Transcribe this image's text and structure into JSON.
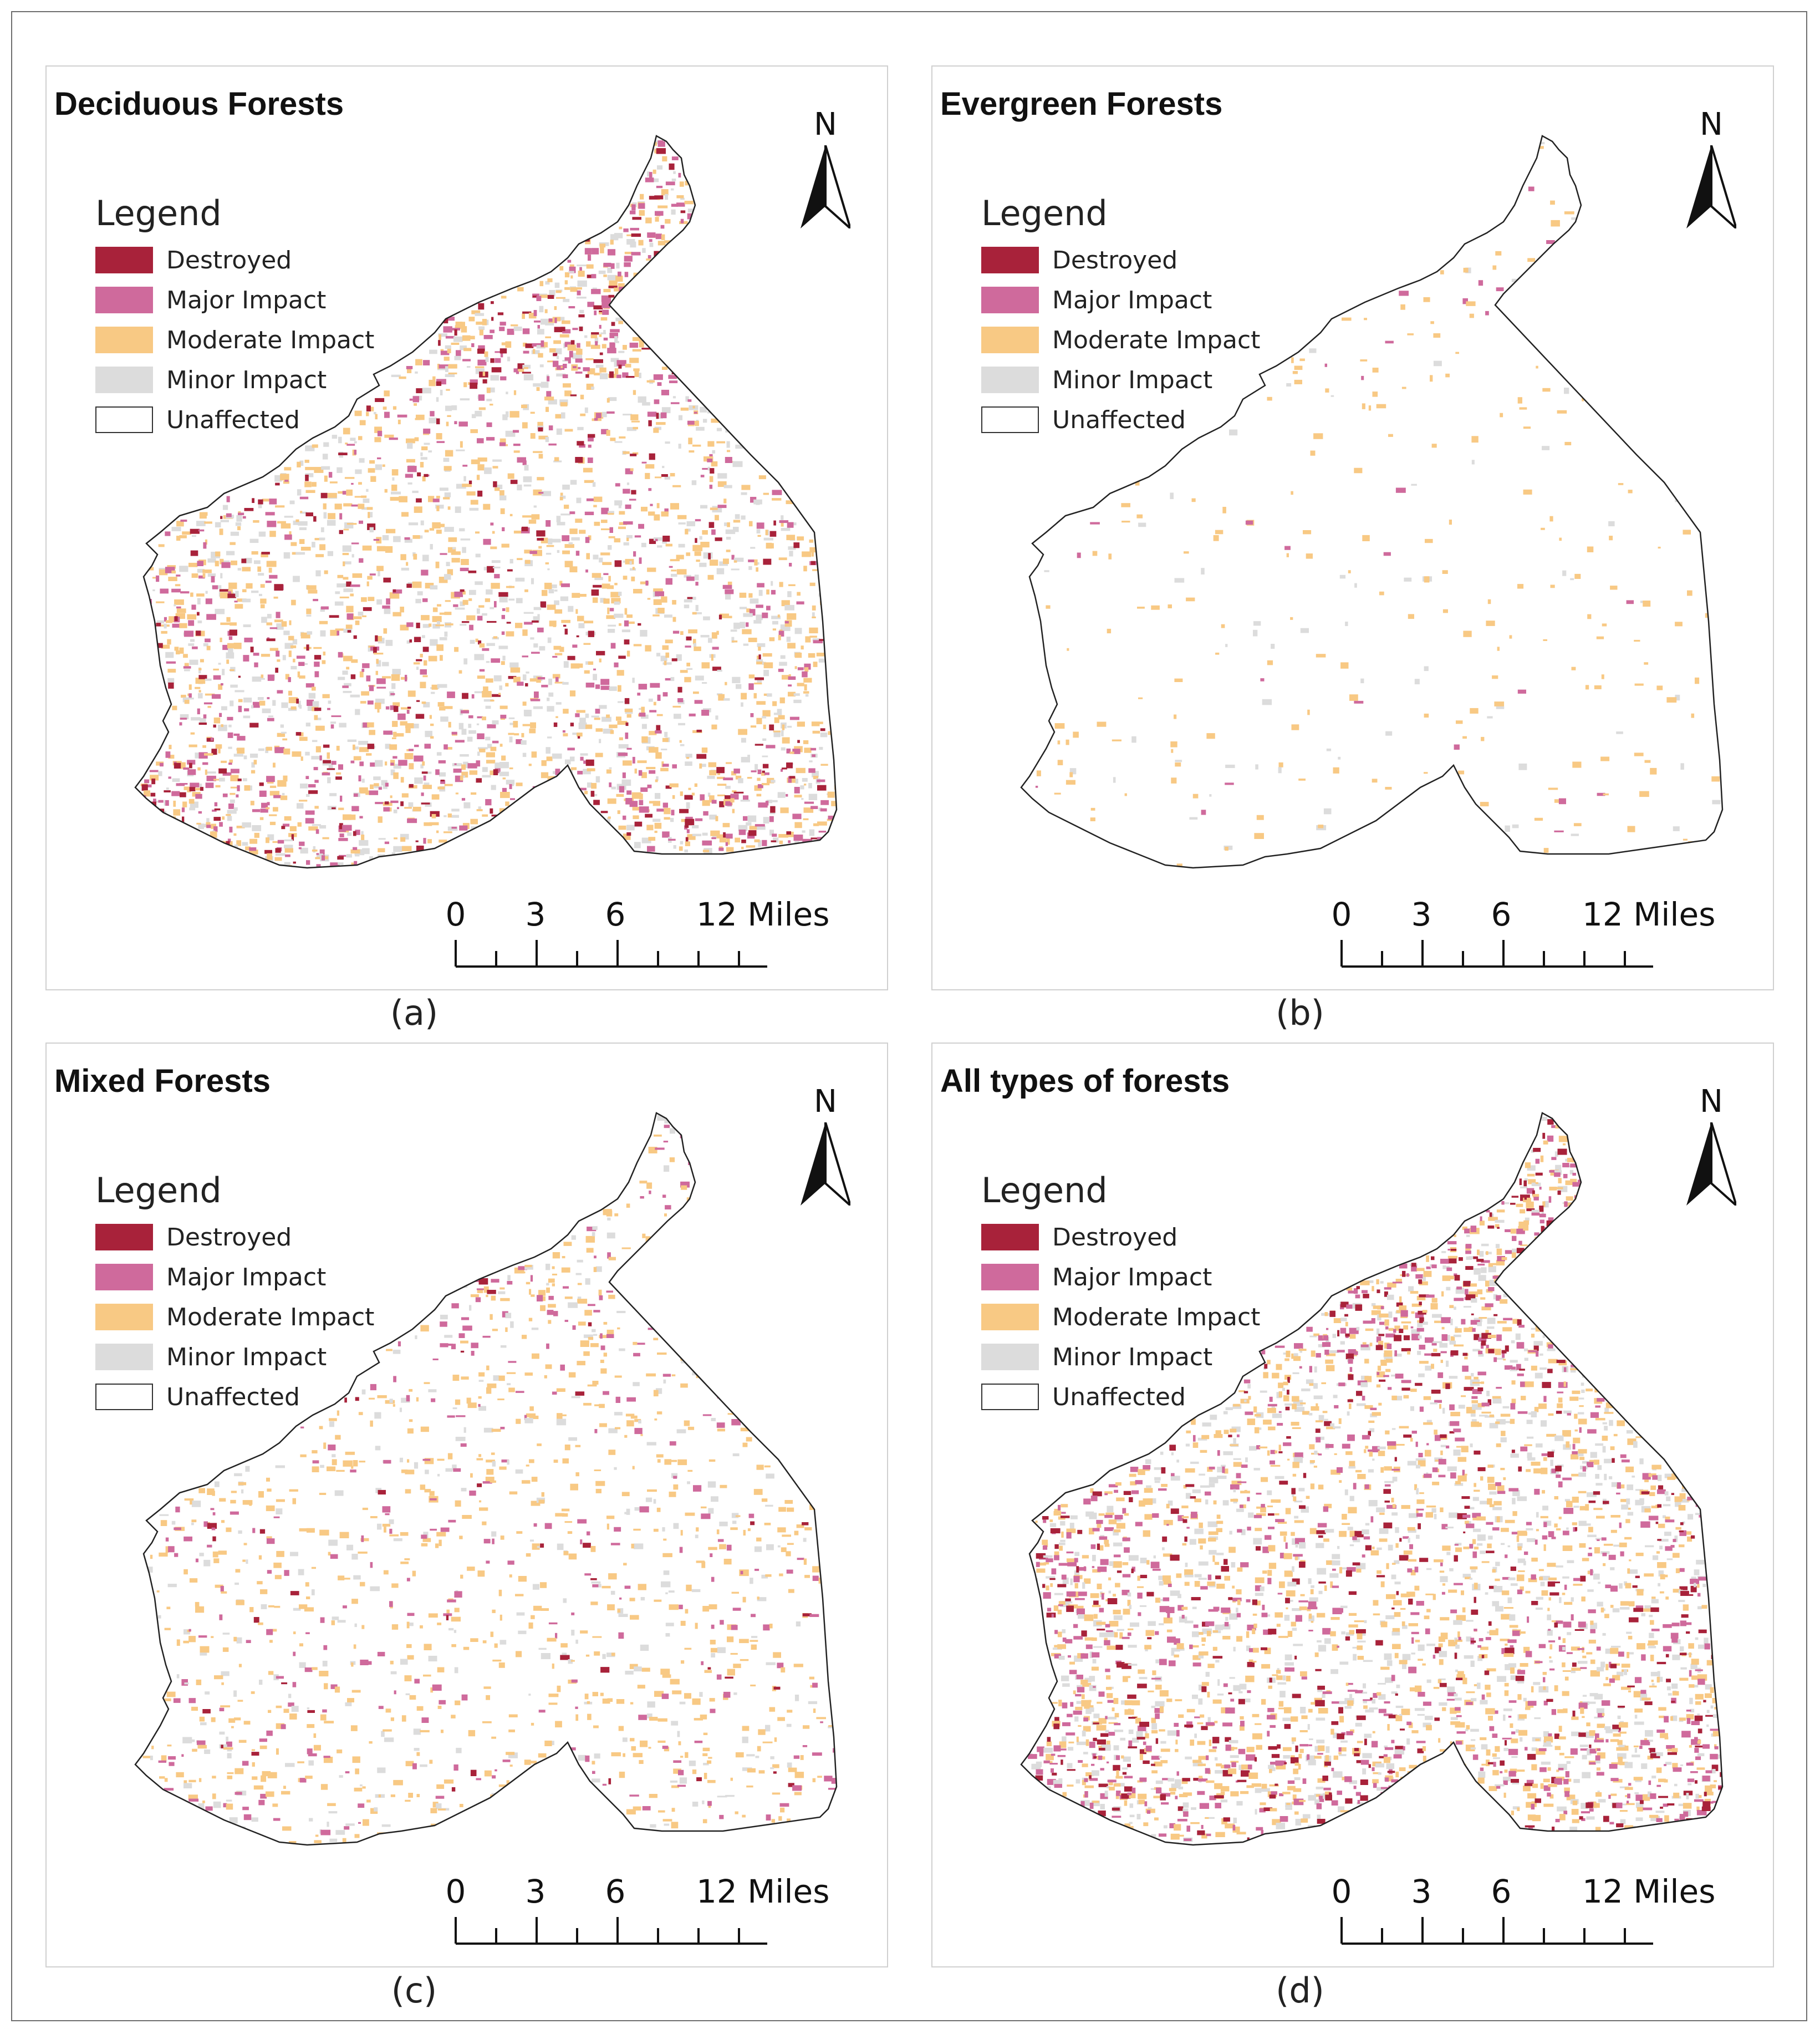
{
  "colors": {
    "destroyed": "#a8223a",
    "major": "#cf6a9c",
    "moderate": "#f8c984",
    "minor": "#dcdcdc",
    "unaffected": "#ffffff",
    "outline": "#222222"
  },
  "legend": {
    "title": "Legend",
    "items": [
      {
        "label": "Destroyed",
        "color": "#a8223a"
      },
      {
        "label": "Major Impact",
        "color": "#cf6a9c"
      },
      {
        "label": "Moderate Impact",
        "color": "#f8c984"
      },
      {
        "label": "Minor Impact",
        "color": "#dcdcdc"
      },
      {
        "label": "Unaffected",
        "color": "#ffffff"
      }
    ]
  },
  "north_label": "N",
  "scale": {
    "ticks": [
      "0",
      "3",
      "6",
      "12 Miles"
    ]
  },
  "panels": [
    {
      "title": "Deciduous Forests",
      "caption": "(a)",
      "intensity": {
        "destroyed": 0.6,
        "major": 0.9,
        "moderate": 0.9,
        "minor": 0.9
      }
    },
    {
      "title": "Evergreen Forests",
      "caption": "(b)",
      "intensity": {
        "destroyed": 0.0,
        "major": 0.03,
        "moderate": 0.15,
        "minor": 0.05
      }
    },
    {
      "title": "Mixed Forests",
      "caption": "(c)",
      "intensity": {
        "destroyed": 0.08,
        "major": 0.35,
        "moderate": 0.55,
        "minor": 0.3
      }
    },
    {
      "title": "All types of forests",
      "caption": "(d)",
      "intensity": {
        "destroyed": 0.8,
        "major": 1.0,
        "moderate": 1.0,
        "minor": 1.0
      }
    }
  ]
}
